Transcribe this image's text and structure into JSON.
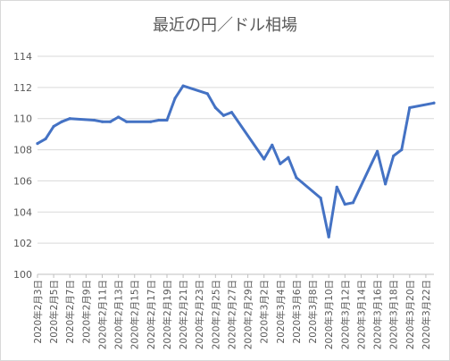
{
  "chart_data": {
    "type": "line",
    "title": "最近の円／ドル相場",
    "xlabel": "",
    "ylabel": "",
    "ylim": [
      100,
      114
    ],
    "yticks": [
      100,
      102,
      104,
      106,
      108,
      110,
      112,
      114
    ],
    "x_tick_labels": [
      "2020年2月3日",
      "2020年2月5日",
      "2020年2月7日",
      "2020年2月9日",
      "2020年2月11日",
      "2020年2月13日",
      "2020年2月15日",
      "2020年2月17日",
      "2020年2月19日",
      "2020年2月21日",
      "2020年2月23日",
      "2020年2月25日",
      "2020年2月27日",
      "2020年2月29日",
      "2020年3月2日",
      "2020年3月4日",
      "2020年3月6日",
      "2020年3月8日",
      "2020年3月10日",
      "2020年3月12日",
      "2020年3月14日",
      "2020年3月16日",
      "2020年3月18日",
      "2020年3月20日",
      "2020年3月22日"
    ],
    "x_start": "2020-02-03",
    "x_end": "2020-03-23",
    "grid": true,
    "legend": "none",
    "line_color": "#4472c4",
    "points": [
      {
        "x": "2020-02-03",
        "y": 108.4
      },
      {
        "x": "2020-02-04",
        "y": 108.7
      },
      {
        "x": "2020-02-05",
        "y": 109.5
      },
      {
        "x": "2020-02-06",
        "y": 109.8
      },
      {
        "x": "2020-02-07",
        "y": 110.0
      },
      {
        "x": "2020-02-10",
        "y": 109.9
      },
      {
        "x": "2020-02-11",
        "y": 109.8
      },
      {
        "x": "2020-02-12",
        "y": 109.8
      },
      {
        "x": "2020-02-13",
        "y": 110.1
      },
      {
        "x": "2020-02-14",
        "y": 109.8
      },
      {
        "x": "2020-02-17",
        "y": 109.8
      },
      {
        "x": "2020-02-18",
        "y": 109.9
      },
      {
        "x": "2020-02-19",
        "y": 109.9
      },
      {
        "x": "2020-02-20",
        "y": 111.3
      },
      {
        "x": "2020-02-21",
        "y": 112.1
      },
      {
        "x": "2020-02-24",
        "y": 111.6
      },
      {
        "x": "2020-02-25",
        "y": 110.7
      },
      {
        "x": "2020-02-26",
        "y": 110.2
      },
      {
        "x": "2020-02-27",
        "y": 110.4
      },
      {
        "x": "2020-03-02",
        "y": 107.4
      },
      {
        "x": "2020-03-03",
        "y": 108.3
      },
      {
        "x": "2020-03-04",
        "y": 107.1
      },
      {
        "x": "2020-03-05",
        "y": 107.5
      },
      {
        "x": "2020-03-06",
        "y": 106.2
      },
      {
        "x": "2020-03-09",
        "y": 104.9
      },
      {
        "x": "2020-03-10",
        "y": 102.4
      },
      {
        "x": "2020-03-11",
        "y": 105.6
      },
      {
        "x": "2020-03-12",
        "y": 104.5
      },
      {
        "x": "2020-03-13",
        "y": 104.6
      },
      {
        "x": "2020-03-16",
        "y": 107.9
      },
      {
        "x": "2020-03-17",
        "y": 105.8
      },
      {
        "x": "2020-03-18",
        "y": 107.6
      },
      {
        "x": "2020-03-19",
        "y": 108.0
      },
      {
        "x": "2020-03-20",
        "y": 110.7
      },
      {
        "x": "2020-03-23",
        "y": 111.0
      }
    ]
  }
}
